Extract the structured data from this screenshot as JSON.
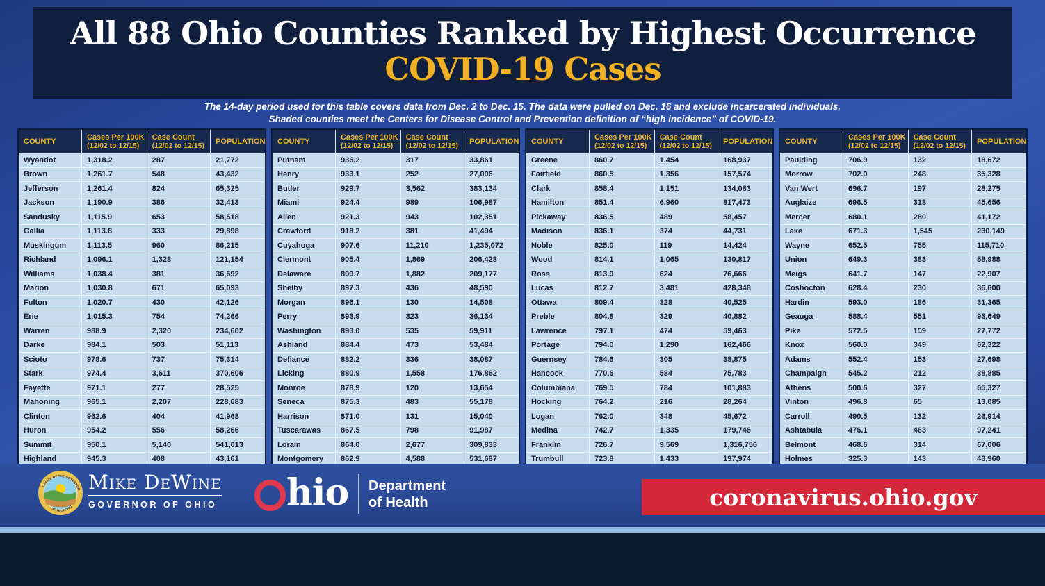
{
  "header": {
    "title": "All 88 Ohio Counties Ranked by Highest Occurrence",
    "subtitle": "COVID-19 Cases",
    "note_line1": "The 14-day period used for this table covers data from Dec. 2 to Dec. 15. The data were pulled on Dec. 16 and exclude incarcerated individuals.",
    "note_line2": "Shaded counties meet the Centers for Disease Control and Prevention definition of “high incidence” of COVID-19."
  },
  "table": {
    "headers": [
      {
        "label": "COUNTY",
        "sub": ""
      },
      {
        "label": "Cases Per 100K",
        "sub": "(12/02 to 12/15)"
      },
      {
        "label": "Case Count",
        "sub": "(12/02 to 12/15)"
      },
      {
        "label": "POPULATION",
        "sub": ""
      }
    ],
    "groups": [
      {
        "rows": [
          [
            "Wyandot",
            "1,318.2",
            "287",
            "21,772"
          ],
          [
            "Brown",
            "1,261.7",
            "548",
            "43,432"
          ],
          [
            "Jefferson",
            "1,261.4",
            "824",
            "65,325"
          ],
          [
            "Jackson",
            "1,190.9",
            "386",
            "32,413"
          ],
          [
            "Sandusky",
            "1,115.9",
            "653",
            "58,518"
          ],
          [
            "Gallia",
            "1,113.8",
            "333",
            "29,898"
          ],
          [
            "Muskingum",
            "1,113.5",
            "960",
            "86,215"
          ],
          [
            "Richland",
            "1,096.1",
            "1,328",
            "121,154"
          ],
          [
            "Williams",
            "1,038.4",
            "381",
            "36,692"
          ],
          [
            "Marion",
            "1,030.8",
            "671",
            "65,093"
          ],
          [
            "Fulton",
            "1,020.7",
            "430",
            "42,126"
          ],
          [
            "Erie",
            "1,015.3",
            "754",
            "74,266"
          ],
          [
            "Warren",
            "988.9",
            "2,320",
            "234,602"
          ],
          [
            "Darke",
            "984.1",
            "503",
            "51,113"
          ],
          [
            "Scioto",
            "978.6",
            "737",
            "75,314"
          ],
          [
            "Stark",
            "974.4",
            "3,611",
            "370,606"
          ],
          [
            "Fayette",
            "971.1",
            "277",
            "28,525"
          ],
          [
            "Mahoning",
            "965.1",
            "2,207",
            "228,683"
          ],
          [
            "Clinton",
            "962.6",
            "404",
            "41,968"
          ],
          [
            "Huron",
            "954.2",
            "556",
            "58,266"
          ],
          [
            "Summit",
            "950.1",
            "5,140",
            "541,013"
          ],
          [
            "Highland",
            "945.3",
            "408",
            "43,161"
          ]
        ]
      },
      {
        "rows": [
          [
            "Putnam",
            "936.2",
            "317",
            "33,861"
          ],
          [
            "Henry",
            "933.1",
            "252",
            "27,006"
          ],
          [
            "Butler",
            "929.7",
            "3,562",
            "383,134"
          ],
          [
            "Miami",
            "924.4",
            "989",
            "106,987"
          ],
          [
            "Allen",
            "921.3",
            "943",
            "102,351"
          ],
          [
            "Crawford",
            "918.2",
            "381",
            "41,494"
          ],
          [
            "Cuyahoga",
            "907.6",
            "11,210",
            "1,235,072"
          ],
          [
            "Clermont",
            "905.4",
            "1,869",
            "206,428"
          ],
          [
            "Delaware",
            "899.7",
            "1,882",
            "209,177"
          ],
          [
            "Shelby",
            "897.3",
            "436",
            "48,590"
          ],
          [
            "Morgan",
            "896.1",
            "130",
            "14,508"
          ],
          [
            "Perry",
            "893.9",
            "323",
            "36,134"
          ],
          [
            "Washington",
            "893.0",
            "535",
            "59,911"
          ],
          [
            "Ashland",
            "884.4",
            "473",
            "53,484"
          ],
          [
            "Defiance",
            "882.2",
            "336",
            "38,087"
          ],
          [
            "Licking",
            "880.9",
            "1,558",
            "176,862"
          ],
          [
            "Monroe",
            "878.9",
            "120",
            "13,654"
          ],
          [
            "Seneca",
            "875.3",
            "483",
            "55,178"
          ],
          [
            "Harrison",
            "871.0",
            "131",
            "15,040"
          ],
          [
            "Tuscarawas",
            "867.5",
            "798",
            "91,987"
          ],
          [
            "Lorain",
            "864.0",
            "2,677",
            "309,833"
          ],
          [
            "Montgomery",
            "862.9",
            "4,588",
            "531,687"
          ]
        ]
      },
      {
        "rows": [
          [
            "Greene",
            "860.7",
            "1,454",
            "168,937"
          ],
          [
            "Fairfield",
            "860.5",
            "1,356",
            "157,574"
          ],
          [
            "Clark",
            "858.4",
            "1,151",
            "134,083"
          ],
          [
            "Hamilton",
            "851.4",
            "6,960",
            "817,473"
          ],
          [
            "Pickaway",
            "836.5",
            "489",
            "58,457"
          ],
          [
            "Madison",
            "836.1",
            "374",
            "44,731"
          ],
          [
            "Noble",
            "825.0",
            "119",
            "14,424"
          ],
          [
            "Wood",
            "814.1",
            "1,065",
            "130,817"
          ],
          [
            "Ross",
            "813.9",
            "624",
            "76,666"
          ],
          [
            "Lucas",
            "812.7",
            "3,481",
            "428,348"
          ],
          [
            "Ottawa",
            "809.4",
            "328",
            "40,525"
          ],
          [
            "Preble",
            "804.8",
            "329",
            "40,882"
          ],
          [
            "Lawrence",
            "797.1",
            "474",
            "59,463"
          ],
          [
            "Portage",
            "794.0",
            "1,290",
            "162,466"
          ],
          [
            "Guernsey",
            "784.6",
            "305",
            "38,875"
          ],
          [
            "Hancock",
            "770.6",
            "584",
            "75,783"
          ],
          [
            "Columbiana",
            "769.5",
            "784",
            "101,883"
          ],
          [
            "Hocking",
            "764.2",
            "216",
            "28,264"
          ],
          [
            "Logan",
            "762.0",
            "348",
            "45,672"
          ],
          [
            "Medina",
            "742.7",
            "1,335",
            "179,746"
          ],
          [
            "Franklin",
            "726.7",
            "9,569",
            "1,316,756"
          ],
          [
            "Trumbull",
            "723.8",
            "1,433",
            "197,974"
          ]
        ]
      },
      {
        "rows": [
          [
            "Paulding",
            "706.9",
            "132",
            "18,672"
          ],
          [
            "Morrow",
            "702.0",
            "248",
            "35,328"
          ],
          [
            "Van Wert",
            "696.7",
            "197",
            "28,275"
          ],
          [
            "Auglaize",
            "696.5",
            "318",
            "45,656"
          ],
          [
            "Mercer",
            "680.1",
            "280",
            "41,172"
          ],
          [
            "Lake",
            "671.3",
            "1,545",
            "230,149"
          ],
          [
            "Wayne",
            "652.5",
            "755",
            "115,710"
          ],
          [
            "Union",
            "649.3",
            "383",
            "58,988"
          ],
          [
            "Meigs",
            "641.7",
            "147",
            "22,907"
          ],
          [
            "Coshocton",
            "628.4",
            "230",
            "36,600"
          ],
          [
            "Hardin",
            "593.0",
            "186",
            "31,365"
          ],
          [
            "Geauga",
            "588.4",
            "551",
            "93,649"
          ],
          [
            "Pike",
            "572.5",
            "159",
            "27,772"
          ],
          [
            "Knox",
            "560.0",
            "349",
            "62,322"
          ],
          [
            "Adams",
            "552.4",
            "153",
            "27,698"
          ],
          [
            "Champaign",
            "545.2",
            "212",
            "38,885"
          ],
          [
            "Athens",
            "500.6",
            "327",
            "65,327"
          ],
          [
            "Vinton",
            "496.8",
            "65",
            "13,085"
          ],
          [
            "Carroll",
            "490.5",
            "132",
            "26,914"
          ],
          [
            "Ashtabula",
            "476.1",
            "463",
            "97,241"
          ],
          [
            "Belmont",
            "468.6",
            "314",
            "67,006"
          ],
          [
            "Holmes",
            "325.3",
            "143",
            "43,960"
          ]
        ]
      }
    ]
  },
  "footer": {
    "seal_top": "OFFICE OF THE GOVERNOR",
    "seal_bottom": "STATE OF OHIO",
    "governor_name": "Mike DeWine",
    "governor_title": "GOVERNOR OF OHIO",
    "ohio_logo_text": "hio",
    "dept_line1": "Department",
    "dept_line2": "of Health",
    "url": "coronavirus.ohio.gov"
  },
  "colors": {
    "background_blue": "#2b4ba2",
    "panel_navy": "#101f3d",
    "header_navy": "#16294e",
    "gold": "#f2b124",
    "row_blue": "#c8dcf0",
    "banner_red": "#d22839",
    "logo_red": "#e0394e",
    "stripe_light_blue": "#8fb9e1",
    "bottom_navy": "#0a1830"
  }
}
